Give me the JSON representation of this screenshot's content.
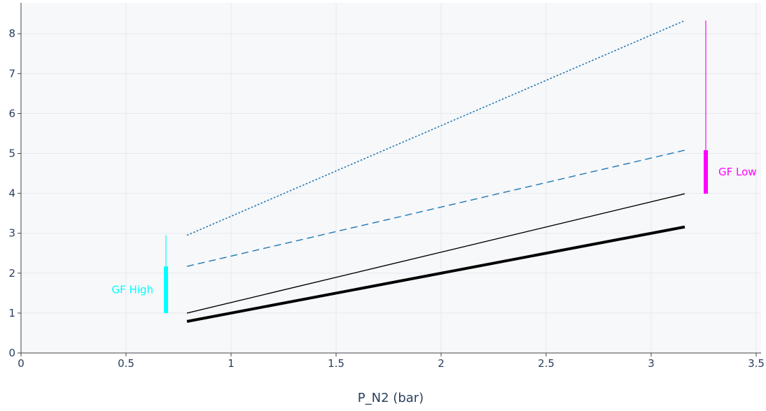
{
  "chart_data": {
    "type": "line",
    "xlabel": "P_N2 (bar)",
    "ylabel": "",
    "xlim": [
      0,
      3.5
    ],
    "ylim": [
      0,
      8.7
    ],
    "x_ticks": [
      "0",
      "0.5",
      "1",
      "1.5",
      "2",
      "2.5",
      "3",
      "3.5"
    ],
    "y_ticks": [
      "0",
      "1",
      "2",
      "3",
      "4",
      "5",
      "6",
      "7",
      "8"
    ],
    "grid": true,
    "series": [
      {
        "style": "dotted",
        "color": "#1f77b4",
        "x": [
          0.79,
          3.16
        ],
        "y": [
          2.95,
          8.33
        ]
      },
      {
        "style": "dashed",
        "color": "#1f77b4",
        "x": [
          0.79,
          3.16
        ],
        "y": [
          2.17,
          5.08
        ]
      },
      {
        "style": "solid-thin",
        "color": "#000000",
        "x": [
          0.79,
          3.16
        ],
        "y": [
          1.0,
          3.99
        ]
      },
      {
        "style": "solid-thick",
        "color": "#000000",
        "x": [
          0.79,
          3.16
        ],
        "y": [
          0.79,
          3.16
        ]
      }
    ],
    "gradient_factor_markers": [
      {
        "label": "GF High",
        "color": "#00ffff",
        "x": 0.69,
        "thin_range": [
          2.17,
          2.95
        ],
        "thick_range": [
          1.0,
          2.17
        ],
        "label_side": "left"
      },
      {
        "label": "GF Low",
        "color": "#ff00ff",
        "x": 3.26,
        "thin_range": [
          5.08,
          8.33
        ],
        "thick_range": [
          3.99,
          5.08
        ],
        "label_side": "right"
      }
    ]
  }
}
